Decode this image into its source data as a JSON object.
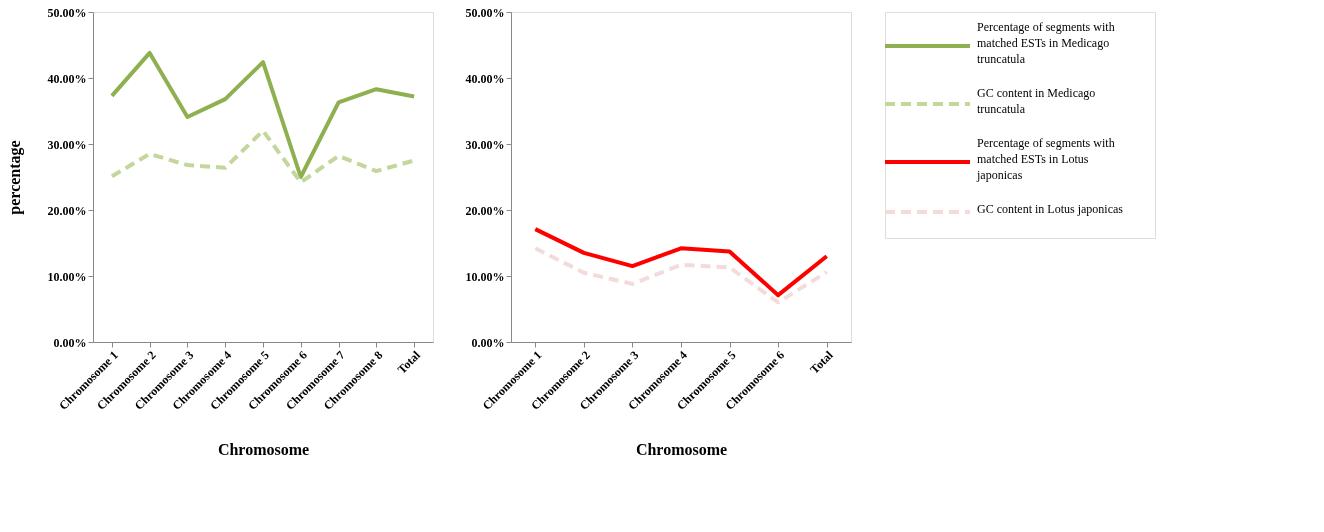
{
  "chart_data": [
    {
      "type": "line",
      "xlabel": "Chromosome",
      "ylabel": "percentage",
      "categories": [
        "Chromosome 1",
        "Chromosome 2",
        "Chromosome 3",
        "Chromosome 4",
        "Chromosome 5",
        "Chromosome 6",
        "Chromosome 7",
        "Chromosome 8",
        "Total"
      ],
      "ylim": [
        0,
        50
      ],
      "yticks": [
        {
          "value": 0,
          "label": "0.00%"
        },
        {
          "value": 10,
          "label": "10.00%"
        },
        {
          "value": 20,
          "label": "20.00%"
        },
        {
          "value": 30,
          "label": "30.00%"
        },
        {
          "value": 40,
          "label": "40.00%"
        },
        {
          "value": 50,
          "label": "50.00%"
        }
      ],
      "grid": false,
      "legend": "right",
      "marker": "none",
      "series": [
        {
          "name": "Percentage of segments with matched ESTs  in Medicago truncatula",
          "color": "#8fb050",
          "line_style": "solid",
          "values": [
            37.3,
            43.8,
            34.1,
            36.8,
            42.4,
            25.0,
            36.3,
            38.3,
            37.2
          ]
        },
        {
          "name": "GC content in Medicago truncatula",
          "color": "#c3d69b",
          "line_style": "dashed",
          "values": [
            25.1,
            28.5,
            26.8,
            26.4,
            32.0,
            24.2,
            28.2,
            25.9,
            27.5
          ]
        }
      ]
    },
    {
      "type": "line",
      "xlabel": "Chromosome",
      "categories": [
        "Chromosome 1",
        "Chromosome 2",
        "Chromosome 3",
        "Chromosome 4",
        "Chromosome 5",
        "Chromosome 6",
        "Total"
      ],
      "ylim": [
        0,
        50
      ],
      "yticks": [
        {
          "value": 0,
          "label": "0.00%"
        },
        {
          "value": 10,
          "label": "10.00%"
        },
        {
          "value": 20,
          "label": "20.00%"
        },
        {
          "value": 30,
          "label": "30.00%"
        },
        {
          "value": 40,
          "label": "40.00%"
        },
        {
          "value": 50,
          "label": "50.00%"
        }
      ],
      "grid": false,
      "legend": "right",
      "marker": "none",
      "series": [
        {
          "name": "Percentage of segments with matched ESTs  in Lotus japonicas",
          "color": "#ff0000",
          "line_style": "solid",
          "values": [
            17.1,
            13.5,
            11.5,
            14.2,
            13.7,
            7.1,
            13.0
          ]
        },
        {
          "name": "GC content in Lotus japonicas",
          "color": "#f2dcdb",
          "line_style": "dashed",
          "values": [
            14.2,
            10.5,
            8.8,
            11.7,
            11.3,
            6.0,
            10.6
          ]
        }
      ]
    }
  ]
}
